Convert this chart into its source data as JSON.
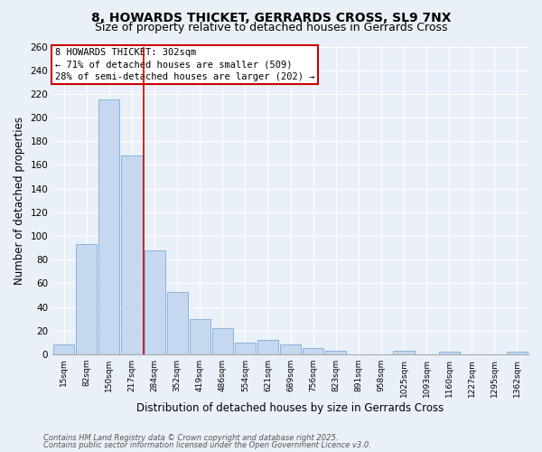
{
  "title1": "8, HOWARDS THICKET, GERRARDS CROSS, SL9 7NX",
  "title2": "Size of property relative to detached houses in Gerrards Cross",
  "xlabel": "Distribution of detached houses by size in Gerrards Cross",
  "ylabel": "Number of detached properties",
  "categories": [
    "15sqm",
    "82sqm",
    "150sqm",
    "217sqm",
    "284sqm",
    "352sqm",
    "419sqm",
    "486sqm",
    "554sqm",
    "621sqm",
    "689sqm",
    "756sqm",
    "823sqm",
    "891sqm",
    "958sqm",
    "1025sqm",
    "1093sqm",
    "1160sqm",
    "1227sqm",
    "1295sqm",
    "1362sqm"
  ],
  "values": [
    8,
    93,
    215,
    168,
    88,
    53,
    30,
    22,
    10,
    12,
    8,
    5,
    3,
    0,
    0,
    3,
    0,
    2,
    0,
    0,
    2
  ],
  "bar_color": "#c5d8f0",
  "bar_edge_color": "#7aadd4",
  "vline_x": 3.5,
  "vline_color": "#cc0000",
  "annotation_text": "8 HOWARDS THICKET: 302sqm\n← 71% of detached houses are smaller (509)\n28% of semi-detached houses are larger (202) →",
  "annotation_box_color": "#ffffff",
  "annotation_box_edge": "#cc0000",
  "ylim": [
    0,
    260
  ],
  "yticks": [
    0,
    20,
    40,
    60,
    80,
    100,
    120,
    140,
    160,
    180,
    200,
    220,
    240,
    260
  ],
  "footer1": "Contains HM Land Registry data © Crown copyright and database right 2025.",
  "footer2": "Contains public sector information licensed under the Open Government Licence v3.0.",
  "bg_color": "#eaf0f8",
  "plot_bg_color": "#eaf0f8",
  "title_fontsize": 10,
  "subtitle_fontsize": 9
}
